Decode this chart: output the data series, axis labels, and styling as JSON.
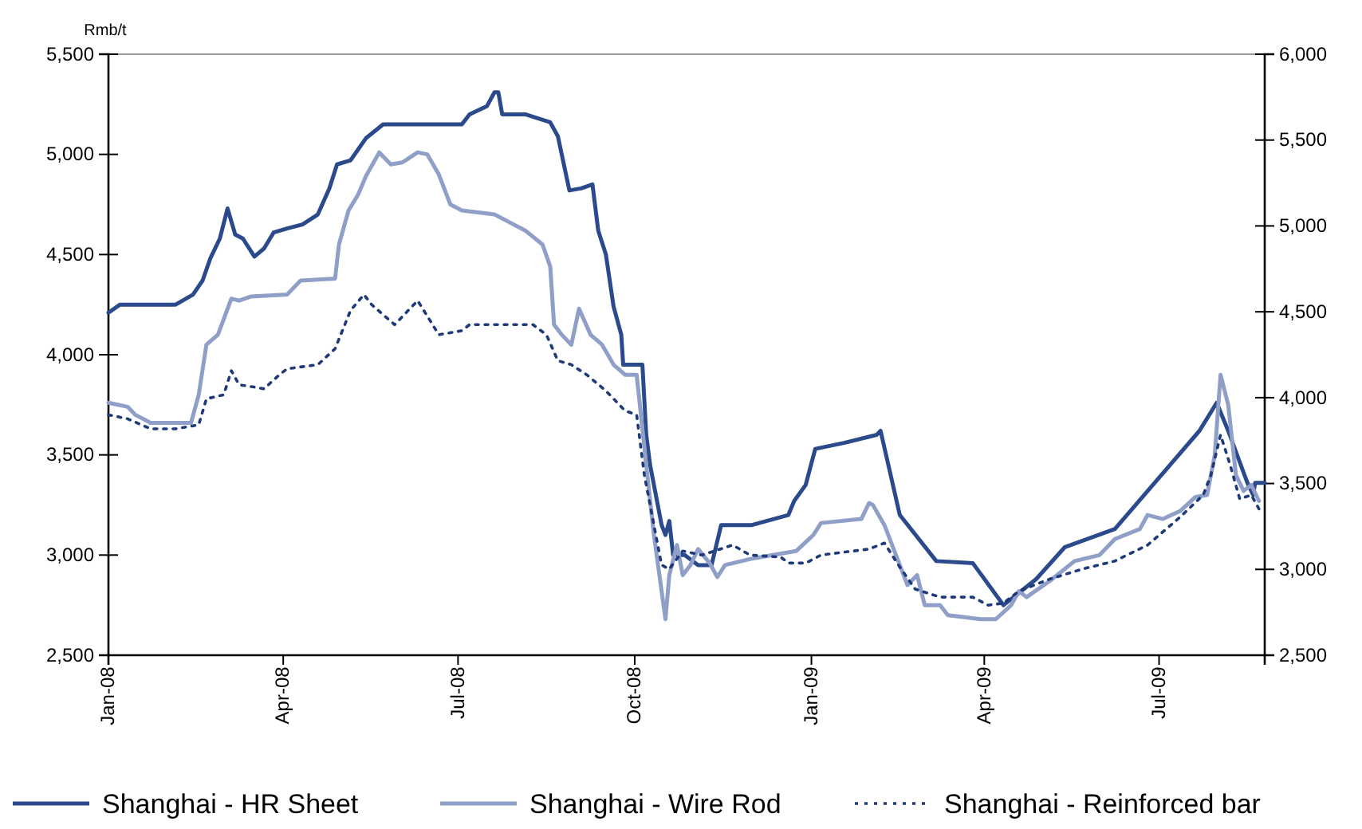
{
  "chart_data": {
    "type": "line",
    "ylabel": "Rmb/t",
    "legend": "bottom",
    "xlim": [
      "2008-01-01",
      "2009-08-25"
    ],
    "xticks": [
      {
        "value": "2008-01-01",
        "label": "Jan-08"
      },
      {
        "value": "2008-04-01",
        "label": "Apr-08"
      },
      {
        "value": "2008-07-01",
        "label": "Jul-08"
      },
      {
        "value": "2008-10-01",
        "label": "Oct-08"
      },
      {
        "value": "2009-01-01",
        "label": "Jan-09"
      },
      {
        "value": "2009-04-01",
        "label": "Apr-09"
      },
      {
        "value": "2009-07-01",
        "label": "Jul-09"
      }
    ],
    "ylim": [
      2500,
      5500
    ],
    "yticks": [
      {
        "value": 2500,
        "label": "2,500"
      },
      {
        "value": 3000,
        "label": "3,000"
      },
      {
        "value": 3500,
        "label": "3,500"
      },
      {
        "value": 4000,
        "label": "4,000"
      },
      {
        "value": 4500,
        "label": "4,500"
      },
      {
        "value": 5000,
        "label": "5,000"
      },
      {
        "value": 5500,
        "label": "5,500"
      }
    ],
    "y2lim": [
      2500,
      6000
    ],
    "y2ticks": [
      {
        "value": 2500,
        "label": "2,500"
      },
      {
        "value": 3000,
        "label": "3,000"
      },
      {
        "value": 3500,
        "label": "3,500"
      },
      {
        "value": 4000,
        "label": "4,000"
      },
      {
        "value": 4500,
        "label": "4,500"
      },
      {
        "value": 5000,
        "label": "5,000"
      },
      {
        "value": 5500,
        "label": "5,500"
      },
      {
        "value": 6000,
        "label": "6,000"
      }
    ],
    "series": [
      {
        "name": "Shanghai - HR Sheet",
        "color": "#2b4a8b",
        "line_style": "solid",
        "x": [
          "2008-01-01",
          "2008-01-07",
          "2008-02-05",
          "2008-02-14",
          "2008-02-19",
          "2008-02-23",
          "2008-02-28",
          "2008-03-03",
          "2008-03-07",
          "2008-03-11",
          "2008-03-17",
          "2008-03-22",
          "2008-03-27",
          "2008-04-03",
          "2008-04-11",
          "2008-04-19",
          "2008-04-25",
          "2008-04-29",
          "2008-05-06",
          "2008-05-14",
          "2008-05-23",
          "2008-07-03",
          "2008-07-07",
          "2008-07-16",
          "2008-07-20",
          "2008-07-22",
          "2008-07-24",
          "2008-08-05",
          "2008-08-18",
          "2008-08-22",
          "2008-08-24",
          "2008-08-28",
          "2008-09-03",
          "2008-09-09",
          "2008-09-12",
          "2008-09-16",
          "2008-09-20",
          "2008-09-24",
          "2008-09-25",
          "2008-10-05",
          "2008-10-07",
          "2008-10-09",
          "2008-10-13",
          "2008-10-15",
          "2008-10-17",
          "2008-10-19",
          "2008-10-21",
          "2008-10-27",
          "2008-11-03",
          "2008-11-10",
          "2008-11-15",
          "2008-11-23",
          "2008-12-01",
          "2008-12-20",
          "2008-12-23",
          "2008-12-29",
          "2009-01-03",
          "2009-01-18",
          "2009-02-04",
          "2009-02-06",
          "2009-02-16",
          "2009-03-07",
          "2009-03-26",
          "2009-04-11",
          "2009-04-28",
          "2009-05-13",
          "2009-06-08",
          "2009-07-04",
          "2009-07-22",
          "2009-07-31",
          "2009-08-06",
          "2009-08-16",
          "2009-08-19",
          "2009-08-20",
          "2009-08-25"
        ],
        "values": [
          4210,
          4250,
          4250,
          4300,
          4370,
          4480,
          4580,
          4730,
          4600,
          4580,
          4490,
          4530,
          4610,
          4630,
          4650,
          4700,
          4830,
          4950,
          4970,
          5080,
          5150,
          5150,
          5200,
          5240,
          5310,
          5310,
          5200,
          5200,
          5160,
          5090,
          5000,
          4820,
          4830,
          4850,
          4620,
          4500,
          4240,
          4100,
          3950,
          3950,
          3600,
          3450,
          3250,
          3150,
          3100,
          3170,
          3000,
          3000,
          2950,
          2950,
          3150,
          3150,
          3150,
          3200,
          3270,
          3350,
          3530,
          3560,
          3600,
          3620,
          3200,
          2970,
          2960,
          2750,
          2880,
          3040,
          3130,
          3420,
          3620,
          3760,
          3620,
          3360,
          3300,
          3360,
          3360
        ]
      },
      {
        "name": "Shanghai - Wire Rod",
        "color": "#8f9fc8",
        "line_style": "solid",
        "x": [
          "2008-01-01",
          "2008-01-11",
          "2008-01-15",
          "2008-01-23",
          "2008-02-13",
          "2008-02-17",
          "2008-02-21",
          "2008-02-27",
          "2008-03-05",
          "2008-03-09",
          "2008-03-15",
          "2008-04-03",
          "2008-04-10",
          "2008-04-28",
          "2008-04-30",
          "2008-05-05",
          "2008-05-10",
          "2008-05-14",
          "2008-05-21",
          "2008-05-27",
          "2008-06-02",
          "2008-06-10",
          "2008-06-15",
          "2008-06-21",
          "2008-06-27",
          "2008-07-03",
          "2008-07-20",
          "2008-07-28",
          "2008-08-05",
          "2008-08-14",
          "2008-08-18",
          "2008-08-20",
          "2008-08-24",
          "2008-08-29",
          "2008-09-02",
          "2008-09-08",
          "2008-09-14",
          "2008-09-20",
          "2008-09-26",
          "2008-10-02",
          "2008-10-07",
          "2008-10-11",
          "2008-10-17",
          "2008-10-19",
          "2008-10-23",
          "2008-10-26",
          "2008-10-30",
          "2008-11-03",
          "2008-11-09",
          "2008-11-13",
          "2008-11-17",
          "2008-11-30",
          "2008-12-12",
          "2008-12-24",
          "2009-01-02",
          "2009-01-06",
          "2009-01-27",
          "2009-01-31",
          "2009-02-02",
          "2009-02-08",
          "2009-02-16",
          "2009-02-20",
          "2009-02-25",
          "2009-03-01",
          "2009-03-09",
          "2009-03-13",
          "2009-03-30",
          "2009-04-07",
          "2009-04-15",
          "2009-04-19",
          "2009-04-23",
          "2009-05-05",
          "2009-05-18",
          "2009-05-31",
          "2009-06-08",
          "2009-06-21",
          "2009-06-25",
          "2009-07-03",
          "2009-07-12",
          "2009-07-20",
          "2009-07-26",
          "2009-07-30",
          "2009-08-02",
          "2009-08-06",
          "2009-08-10",
          "2009-08-14",
          "2009-08-18",
          "2009-08-22"
        ],
        "values": [
          3760,
          3740,
          3700,
          3660,
          3660,
          3800,
          4050,
          4100,
          4280,
          4270,
          4290,
          4300,
          4370,
          4380,
          4550,
          4720,
          4800,
          4890,
          5010,
          4950,
          4960,
          5010,
          5000,
          4900,
          4750,
          4720,
          4700,
          4660,
          4620,
          4550,
          4440,
          4150,
          4100,
          4050,
          4230,
          4100,
          4050,
          3950,
          3900,
          3900,
          3450,
          3100,
          2680,
          2900,
          3050,
          2900,
          2950,
          3030,
          2960,
          2890,
          2950,
          2980,
          3000,
          3020,
          3100,
          3160,
          3180,
          3260,
          3250,
          3150,
          2950,
          2850,
          2900,
          2750,
          2750,
          2700,
          2680,
          2680,
          2750,
          2820,
          2790,
          2870,
          2970,
          3000,
          3080,
          3130,
          3200,
          3180,
          3220,
          3290,
          3300,
          3500,
          3900,
          3750,
          3400,
          3320,
          3350,
          3270
        ]
      },
      {
        "name": "Shanghai - Reinforced bar",
        "color": "#1f3a78",
        "line_style": "dotted",
        "x": [
          "2008-01-01",
          "2008-01-11",
          "2008-01-23",
          "2008-02-05",
          "2008-02-17",
          "2008-02-21",
          "2008-03-01",
          "2008-03-05",
          "2008-03-09",
          "2008-03-16",
          "2008-03-22",
          "2008-03-30",
          "2008-04-03",
          "2008-04-19",
          "2008-04-28",
          "2008-05-06",
          "2008-05-13",
          "2008-05-17",
          "2008-05-23",
          "2008-05-29",
          "2008-06-10",
          "2008-06-21",
          "2008-07-03",
          "2008-07-07",
          "2008-08-09",
          "2008-08-16",
          "2008-08-22",
          "2008-08-29",
          "2008-09-06",
          "2008-09-16",
          "2008-09-26",
          "2008-10-02",
          "2008-10-06",
          "2008-10-11",
          "2008-10-15",
          "2008-10-19",
          "2008-10-26",
          "2008-11-05",
          "2008-11-21",
          "2008-11-30",
          "2008-12-16",
          "2008-12-20",
          "2008-12-29",
          "2009-01-06",
          "2009-01-31",
          "2009-02-08",
          "2009-02-16",
          "2009-02-24",
          "2009-03-09",
          "2009-03-26",
          "2009-04-03",
          "2009-04-11",
          "2009-04-19",
          "2009-05-05",
          "2009-05-22",
          "2009-06-08",
          "2009-06-25",
          "2009-07-12",
          "2009-07-24",
          "2009-07-28",
          "2009-08-02",
          "2009-08-07",
          "2009-08-12",
          "2009-08-18",
          "2009-08-22"
        ],
        "values": [
          3700,
          3680,
          3630,
          3630,
          3650,
          3780,
          3800,
          3920,
          3850,
          3840,
          3830,
          3900,
          3930,
          3950,
          4030,
          4220,
          4300,
          4250,
          4200,
          4150,
          4270,
          4100,
          4120,
          4150,
          4150,
          4100,
          3970,
          3950,
          3900,
          3820,
          3720,
          3700,
          3400,
          3150,
          2950,
          2930,
          3020,
          3000,
          3050,
          3000,
          2990,
          2960,
          2960,
          3000,
          3030,
          3060,
          2940,
          2830,
          2790,
          2790,
          2750,
          2760,
          2820,
          2880,
          2930,
          2970,
          3050,
          3190,
          3300,
          3400,
          3600,
          3450,
          3280,
          3300,
          3230
        ]
      }
    ]
  }
}
